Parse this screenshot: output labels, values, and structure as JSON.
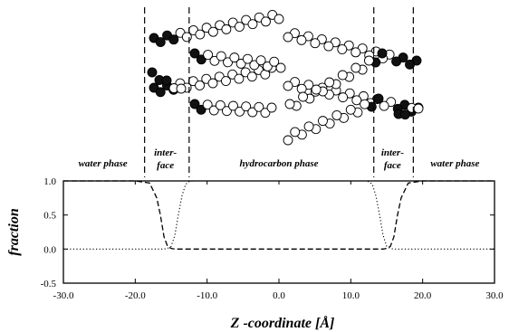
{
  "chart_data": {
    "type": "line",
    "title": "",
    "xlabel": "Z -coordinate [Å]",
    "ylabel": "fraction",
    "xlim": [
      -30,
      30
    ],
    "ylim": [
      -0.5,
      1.0
    ],
    "x_ticks": [
      "-30.0",
      "-20.0",
      "-10.0",
      "0.0",
      "10.0",
      "20.0",
      "30.0"
    ],
    "y_ticks": [
      "1.0",
      "0.5",
      "0.0",
      "-0.5"
    ],
    "grid": false,
    "legend": "none",
    "regions": [
      {
        "label": "water phase",
        "x": -24.5
      },
      {
        "label": "inter-",
        "x": -15.8
      },
      {
        "label": "face",
        "x": -15.8
      },
      {
        "label": "hydrocarbon phase",
        "x": 0
      },
      {
        "label": "inter-",
        "x": 15.8
      },
      {
        "label": "face",
        "x": 15.8
      },
      {
        "label": "water phase",
        "x": 24.5
      }
    ],
    "boundaries": [
      -18.7,
      -12.5,
      13.2,
      18.7
    ],
    "series": [
      {
        "style": "dashed",
        "x": [
          -30,
          -20,
          -18,
          -17,
          -16.5,
          -16,
          -15.5,
          -15,
          -14.5,
          -14,
          -13.8,
          -13.5,
          0,
          13.5,
          13.8,
          14,
          14.5,
          15,
          15.5,
          16,
          16.5,
          17,
          18,
          20,
          30
        ],
        "y": [
          1.0,
          1.0,
          0.97,
          0.75,
          0.5,
          0.18,
          0.04,
          0.01,
          0.0,
          0.0,
          0.0,
          0.0,
          0.0,
          0.0,
          0.0,
          0.0,
          0.0,
          0.01,
          0.04,
          0.18,
          0.5,
          0.75,
          0.97,
          1.0,
          1.0
        ]
      },
      {
        "style": "dotted",
        "x": [
          -30,
          -20,
          -17,
          -16.5,
          -16,
          -15.5,
          -15,
          -14.5,
          -14,
          -13.5,
          -13,
          -12.5,
          -12,
          -11,
          0,
          11,
          12,
          12.5,
          13,
          13.5,
          14,
          14.5,
          15,
          15.5,
          16,
          16.5,
          17,
          20,
          30
        ],
        "y": [
          0.0,
          0.0,
          0.0,
          0.0,
          0.0,
          0.01,
          0.04,
          0.2,
          0.5,
          0.78,
          0.95,
          0.99,
          1.0,
          1.0,
          1.0,
          1.0,
          1.0,
          0.99,
          0.95,
          0.78,
          0.5,
          0.2,
          0.04,
          0.01,
          0.0,
          0.0,
          0.0,
          0.0,
          0.0
        ]
      }
    ]
  },
  "colors": {
    "ink": "#000000",
    "atom_fill": "#ffffff",
    "headgroup": "#111111"
  }
}
